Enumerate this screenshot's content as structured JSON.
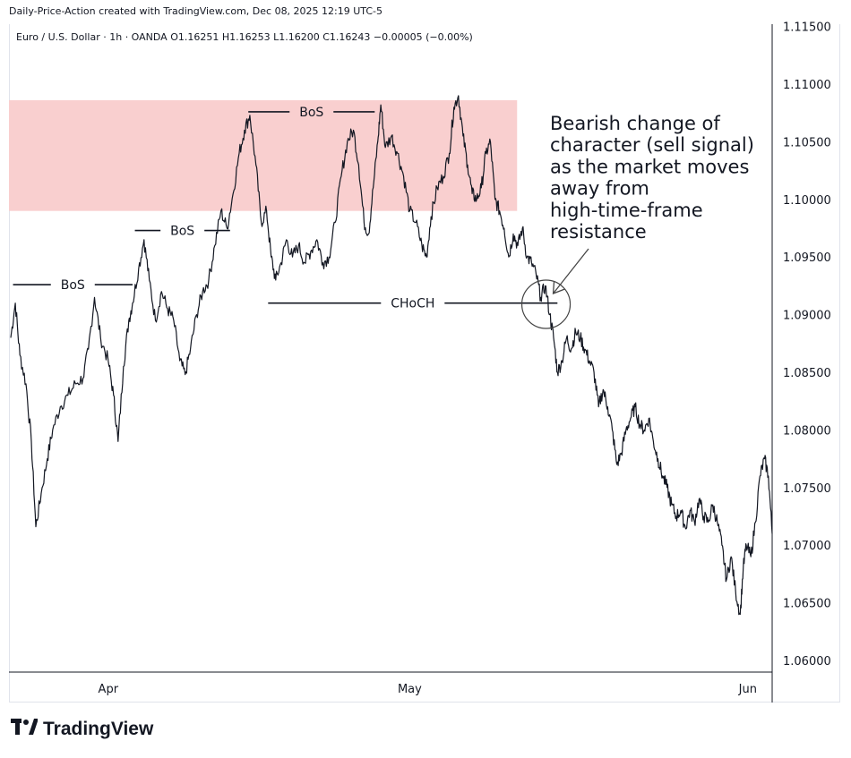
{
  "header": {
    "credit": "Daily-Price-Action created with TradingView.com, Dec 08, 2025 12:19 UTC-5",
    "symbol_line": "Euro / U.S. Dollar · 1h · OANDA  O1.16251  H1.16253  L1.16200  C1.16243  −0.00005 (−0.00%)"
  },
  "brand": {
    "name": "TradingView",
    "icon": "tradingview-logo-icon"
  },
  "colors": {
    "zone": "#f9cfcf",
    "line": "#131722",
    "axis": "#131722",
    "grid": "#e0e3eb"
  },
  "chart_data": {
    "type": "line",
    "instrument": "Euro / U.S. Dollar",
    "timeframe": "1h",
    "source": "OANDA",
    "x_tick_labels": [
      "Apr",
      "May",
      "Jun"
    ],
    "y_tick_labels": [
      "1.11500",
      "1.11000",
      "1.10500",
      "1.10000",
      "1.09500",
      "1.09000",
      "1.08500",
      "1.08000",
      "1.07500",
      "1.07000",
      "1.06500",
      "1.06000"
    ],
    "ylim": [
      1.0595,
      1.1153
    ],
    "y_ticks": [
      1.115,
      1.11,
      1.105,
      1.1,
      1.095,
      1.09,
      1.085,
      1.08,
      1.075,
      1.07,
      1.065,
      1.06
    ],
    "x_ticks": [
      {
        "label": "Apr",
        "t": 0.128
      },
      {
        "label": "May",
        "t": 0.524
      },
      {
        "label": "Jun",
        "t": 0.968
      }
    ],
    "series": [
      {
        "values": [
          [
            0.0,
            1.088
          ],
          [
            0.006,
            1.091
          ],
          [
            0.012,
            1.0865
          ],
          [
            0.02,
            1.084
          ],
          [
            0.027,
            1.079
          ],
          [
            0.033,
            1.0716
          ],
          [
            0.04,
            1.0745
          ],
          [
            0.048,
            1.0775
          ],
          [
            0.055,
            1.08
          ],
          [
            0.065,
            1.082
          ],
          [
            0.075,
            1.083
          ],
          [
            0.085,
            1.084
          ],
          [
            0.095,
            1.0845
          ],
          [
            0.102,
            1.087
          ],
          [
            0.11,
            1.0915
          ],
          [
            0.118,
            1.088
          ],
          [
            0.128,
            1.086
          ],
          [
            0.135,
            1.083
          ],
          [
            0.141,
            1.079
          ],
          [
            0.148,
            1.0855
          ],
          [
            0.155,
            1.0895
          ],
          [
            0.16,
            1.091
          ],
          [
            0.168,
            1.094
          ],
          [
            0.175,
            1.0965
          ],
          [
            0.182,
            1.093
          ],
          [
            0.19,
            1.0895
          ],
          [
            0.198,
            1.092
          ],
          [
            0.206,
            1.0905
          ],
          [
            0.214,
            1.0895
          ],
          [
            0.222,
            1.086
          ],
          [
            0.229,
            1.0848
          ],
          [
            0.236,
            1.087
          ],
          [
            0.244,
            1.09
          ],
          [
            0.252,
            1.092
          ],
          [
            0.26,
            1.093
          ],
          [
            0.268,
            1.096
          ],
          [
            0.276,
            1.099
          ],
          [
            0.284,
            1.0975
          ],
          [
            0.292,
            1.1005
          ],
          [
            0.3,
            1.104
          ],
          [
            0.307,
            1.106
          ],
          [
            0.314,
            1.1073
          ],
          [
            0.322,
            1.103
          ],
          [
            0.329,
            1.098
          ],
          [
            0.336,
            1.099
          ],
          [
            0.342,
            1.095
          ],
          [
            0.348,
            1.093
          ],
          [
            0.355,
            1.0945
          ],
          [
            0.362,
            1.0965
          ],
          [
            0.37,
            1.095
          ],
          [
            0.378,
            1.096
          ],
          [
            0.386,
            1.0945
          ],
          [
            0.394,
            1.0955
          ],
          [
            0.402,
            1.0965
          ],
          [
            0.41,
            1.0945
          ],
          [
            0.418,
            1.095
          ],
          [
            0.426,
            1.098
          ],
          [
            0.434,
            1.102
          ],
          [
            0.442,
            1.105
          ],
          [
            0.45,
            1.106
          ],
          [
            0.457,
            1.103
          ],
          [
            0.464,
            1.098
          ],
          [
            0.47,
            1.097
          ],
          [
            0.476,
            1.101
          ],
          [
            0.482,
            1.105
          ],
          [
            0.486,
            1.1082
          ],
          [
            0.492,
            1.1045
          ],
          [
            0.5,
            1.1055
          ],
          [
            0.508,
            1.104
          ],
          [
            0.516,
            1.102
          ],
          [
            0.524,
            1.099
          ],
          [
            0.532,
            1.098
          ],
          [
            0.54,
            1.096
          ],
          [
            0.546,
            1.095
          ],
          [
            0.552,
            1.0985
          ],
          [
            0.56,
            1.101
          ],
          [
            0.568,
            1.102
          ],
          [
            0.576,
            1.104
          ],
          [
            0.582,
            1.108
          ],
          [
            0.588,
            1.109
          ],
          [
            0.594,
            1.1055
          ],
          [
            0.6,
            1.103
          ],
          [
            0.606,
            1.1005
          ],
          [
            0.612,
            1.1
          ],
          [
            0.618,
            1.101
          ],
          [
            0.624,
            1.104
          ],
          [
            0.63,
            1.105
          ],
          [
            0.636,
            1.1
          ],
          [
            0.642,
            1.099
          ],
          [
            0.648,
            1.0975
          ],
          [
            0.654,
            1.095
          ],
          [
            0.66,
            1.097
          ],
          [
            0.666,
            1.096
          ],
          [
            0.672,
            1.0975
          ],
          [
            0.678,
            1.095
          ],
          [
            0.684,
            1.0945
          ],
          [
            0.69,
            1.0935
          ],
          [
            0.696,
            1.0915
          ],
          [
            0.702,
            1.0925
          ],
          [
            0.708,
            1.09
          ],
          [
            0.713,
            1.088
          ],
          [
            0.718,
            1.085
          ],
          [
            0.724,
            1.086
          ],
          [
            0.73,
            1.088
          ],
          [
            0.736,
            1.087
          ],
          [
            0.742,
            1.0885
          ],
          [
            0.748,
            1.088
          ],
          [
            0.754,
            1.087
          ],
          [
            0.76,
            1.086
          ],
          [
            0.766,
            1.085
          ],
          [
            0.772,
            1.082
          ],
          [
            0.778,
            1.0835
          ],
          [
            0.784,
            1.082
          ],
          [
            0.79,
            1.08
          ],
          [
            0.796,
            1.077
          ],
          [
            0.802,
            1.078
          ],
          [
            0.808,
            1.08
          ],
          [
            0.814,
            1.081
          ],
          [
            0.82,
            1.082
          ],
          [
            0.826,
            1.0805
          ],
          [
            0.832,
            1.08
          ],
          [
            0.838,
            1.081
          ],
          [
            0.844,
            1.079
          ],
          [
            0.85,
            1.0775
          ],
          [
            0.856,
            1.076
          ],
          [
            0.862,
            1.075
          ],
          [
            0.868,
            1.0735
          ],
          [
            0.874,
            1.0725
          ],
          [
            0.88,
            1.073
          ],
          [
            0.886,
            1.0715
          ],
          [
            0.892,
            1.073
          ],
          [
            0.898,
            1.072
          ],
          [
            0.904,
            1.074
          ],
          [
            0.91,
            1.0725
          ],
          [
            0.916,
            1.072
          ],
          [
            0.922,
            1.0735
          ],
          [
            0.928,
            1.072
          ],
          [
            0.934,
            1.07
          ],
          [
            0.94,
            1.067
          ],
          [
            0.946,
            1.069
          ],
          [
            0.952,
            1.066
          ],
          [
            0.958,
            1.064
          ],
          [
            0.962,
            1.068
          ],
          [
            0.966,
            1.07
          ],
          [
            0.972,
            1.069
          ],
          [
            0.978,
            1.072
          ],
          [
            0.984,
            1.076
          ],
          [
            0.99,
            1.0775
          ],
          [
            0.995,
            1.076
          ],
          [
            1.0,
            1.071
          ]
        ]
      }
    ],
    "supply_zone": {
      "from_t": 0.0,
      "to_t": 0.665,
      "high": 1.1086,
      "low": 1.099
    },
    "annotations": [
      {
        "label": "BoS",
        "price": 1.0926,
        "from_t": 0.003,
        "to_t": 0.16
      },
      {
        "label": "BoS",
        "price": 1.0973,
        "from_t": 0.163,
        "to_t": 0.288
      },
      {
        "label": "BoS",
        "price": 1.1076,
        "from_t": 0.312,
        "to_t": 0.478
      },
      {
        "label": "CHoCH",
        "price": 1.091,
        "from_t": 0.338,
        "to_t": 0.718
      }
    ],
    "callout": {
      "text_lines": [
        "Bearish change of",
        "character (sell signal)",
        "as the market moves",
        "away from",
        "high-time-frame",
        "resistance"
      ],
      "target_t": 0.703,
      "target_price": 1.0909
    }
  }
}
